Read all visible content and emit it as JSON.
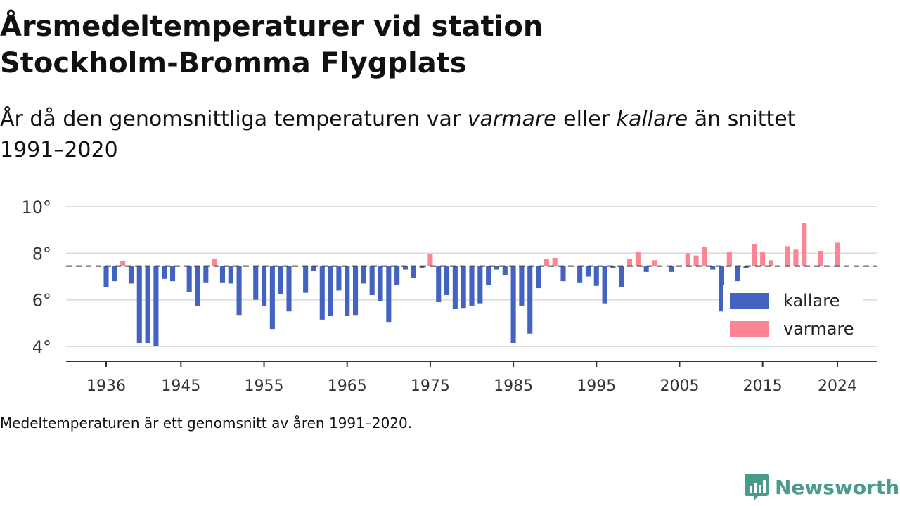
{
  "title": "Årsmedeltemperaturer vid station Stockholm-Bromma Flygplats",
  "subtitle": {
    "part1": "År då den genomsnittliga temperaturen var ",
    "em1": "varmare",
    "part2": " eller ",
    "em2": "kallare",
    "part3": " än snittet 1991–2020"
  },
  "footnote": "Medeltemperaturen är ett genomsnitt av åren 1991–2020.",
  "brand": {
    "name": "Newsworthy",
    "color": "#4a9b8e"
  },
  "chart_data": {
    "type": "bar",
    "baseline": 7.45,
    "ylim": [
      3.4,
      10.6
    ],
    "yticks": [
      4,
      6,
      8,
      10
    ],
    "ytick_labels": [
      "4°",
      "6°",
      "8°",
      "10°"
    ],
    "xlim": [
      1931.5,
      2028.5
    ],
    "xticks": [
      1936,
      1945,
      1955,
      1965,
      1975,
      1985,
      1995,
      2005,
      2015,
      2024
    ],
    "xtick_labels": [
      "1936",
      "1945",
      "1955",
      "1965",
      "1975",
      "1985",
      "1995",
      "2005",
      "2015",
      "2024"
    ],
    "colors": {
      "kallare": "#4263c0",
      "varmare": "#fc8493",
      "baseline": "#444444",
      "grid": "#dddddd"
    },
    "legend": [
      {
        "key": "kallare",
        "label": "kallare"
      },
      {
        "key": "varmare",
        "label": "varmare"
      }
    ],
    "legend_position": "bottom-right",
    "years": [
      1936,
      1937,
      1938,
      1939,
      1940,
      1941,
      1942,
      1943,
      1944,
      1945,
      1946,
      1947,
      1948,
      1949,
      1950,
      1951,
      1952,
      1953,
      1954,
      1955,
      1956,
      1957,
      1958,
      1959,
      1960,
      1961,
      1962,
      1963,
      1964,
      1965,
      1966,
      1967,
      1968,
      1969,
      1970,
      1971,
      1972,
      1973,
      1974,
      1975,
      1976,
      1977,
      1978,
      1979,
      1980,
      1981,
      1982,
      1983,
      1984,
      1985,
      1986,
      1987,
      1988,
      1989,
      1990,
      1991,
      1992,
      1993,
      1994,
      1995,
      1996,
      1997,
      1998,
      1999,
      2000,
      2001,
      2002,
      2003,
      2004,
      2005,
      2006,
      2007,
      2008,
      2009,
      2010,
      2011,
      2012,
      2013,
      2014,
      2015,
      2016,
      2017,
      2018,
      2019,
      2020,
      2021,
      2022,
      2023,
      2024
    ],
    "values": [
      6.55,
      6.8,
      7.65,
      6.7,
      4.15,
      4.15,
      4.0,
      6.9,
      6.8,
      7.4,
      6.35,
      5.75,
      6.75,
      7.75,
      6.75,
      6.7,
      5.35,
      7.4,
      6.0,
      5.75,
      4.75,
      6.25,
      5.5,
      7.4,
      6.3,
      7.25,
      5.15,
      5.3,
      6.4,
      5.3,
      5.35,
      6.7,
      6.2,
      5.95,
      5.05,
      6.65,
      7.3,
      6.95,
      7.35,
      7.95,
      5.9,
      6.2,
      5.6,
      5.65,
      5.75,
      5.85,
      6.65,
      7.3,
      7.05,
      4.15,
      5.75,
      4.55,
      6.5,
      7.75,
      7.8,
      6.8,
      7.4,
      6.75,
      7.0,
      6.6,
      5.85,
      7.35,
      6.55,
      7.75,
      8.05,
      7.2,
      7.7,
      7.4,
      7.2,
      7.4,
      8.0,
      7.9,
      8.25,
      7.3,
      5.5,
      8.05,
      6.8,
      7.35,
      8.4,
      8.05,
      7.7,
      7.4,
      8.3,
      8.15,
      9.3,
      7.4,
      8.1,
      7.45,
      8.45
    ]
  }
}
